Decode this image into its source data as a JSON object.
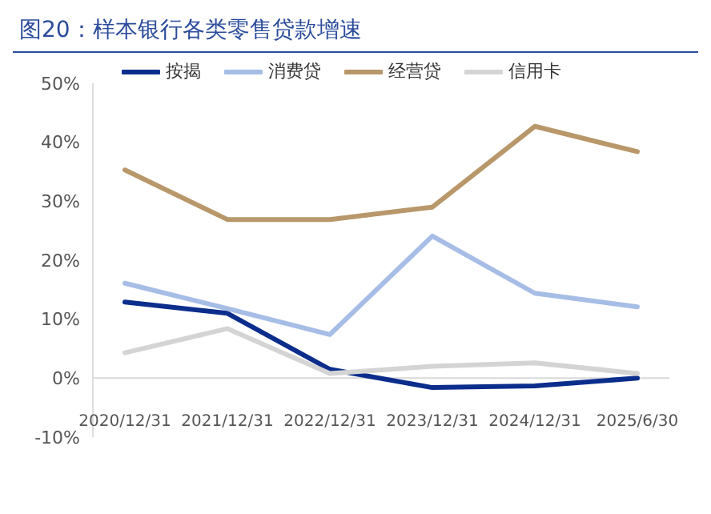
{
  "chart_data": {
    "type": "line",
    "title": "图20：样本银行各类零售贷款增速",
    "categories": [
      "2020/12/31",
      "2021/12/31",
      "2022/12/31",
      "2023/12/31",
      "2024/12/31",
      "2025/6/30"
    ],
    "series": [
      {
        "name": "按揭",
        "color": "#0b2d8c",
        "values": [
          12.9,
          11.0,
          1.5,
          -1.6,
          -1.3,
          0
        ]
      },
      {
        "name": "消费贷",
        "color": "#a6bde6",
        "values": [
          16.1,
          11.8,
          7.4,
          24.1,
          14.4,
          12.1
        ]
      },
      {
        "name": "经营贷",
        "color": "#b8976a",
        "values": [
          35.3,
          26.9,
          26.9,
          29.0,
          42.7,
          38.4
        ]
      },
      {
        "name": "信用卡",
        "color": "#d4d4d4",
        "values": [
          4.3,
          8.4,
          0.8,
          2.0,
          2.6,
          0.8
        ]
      }
    ],
    "ylim": [
      -10,
      50
    ],
    "yticks": [
      {
        "value": -10,
        "label": "-10%"
      },
      {
        "value": 0,
        "label": "0%"
      },
      {
        "value": 10,
        "label": "10%"
      },
      {
        "value": 20,
        "label": "20%"
      },
      {
        "value": 30,
        "label": "30%"
      },
      {
        "value": 40,
        "label": "40%"
      },
      {
        "value": 50,
        "label": "50%"
      }
    ],
    "grid": false,
    "legend": "top",
    "marker": "none",
    "line_style": "solid"
  }
}
